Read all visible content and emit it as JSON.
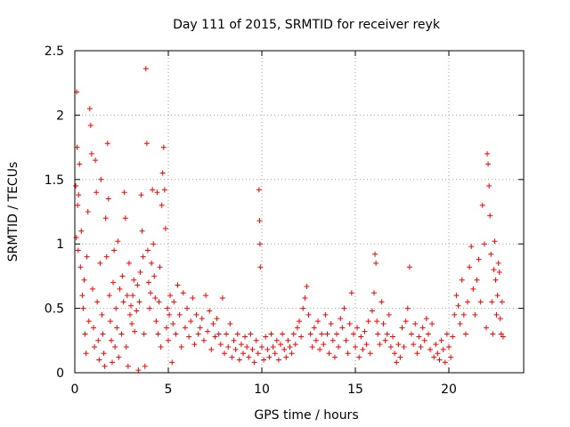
{
  "chart_data": {
    "type": "scatter",
    "title": "Day 111 of 2015, SRMTID for receiver reyk",
    "xlabel": "GPS time / hours",
    "ylabel": "SRMTID / TECUs",
    "xlim": [
      0,
      24
    ],
    "ylim": [
      0,
      2.5
    ],
    "xticks": [
      0,
      5,
      10,
      15,
      20
    ],
    "xtick_labels": [
      "0",
      "5",
      "10",
      "15",
      "20"
    ],
    "yticks": [
      0,
      0.5,
      1,
      1.5,
      2,
      2.5
    ],
    "ytick_labels": [
      "0",
      "0.5",
      "1",
      "1.5",
      "2",
      "2.5"
    ],
    "grid": true,
    "marker": "+",
    "color": "#ff0000",
    "series": [
      {
        "name": "SRMTID",
        "points": [
          [
            0.05,
            1.45
          ],
          [
            0.1,
            2.18
          ],
          [
            0.12,
            1.75
          ],
          [
            0.15,
            1.3
          ],
          [
            0.2,
            1.38
          ],
          [
            0.25,
            1.62
          ],
          [
            0.08,
            1.05
          ],
          [
            0.18,
            0.95
          ],
          [
            0.3,
            0.82
          ],
          [
            0.35,
            1.1
          ],
          [
            0.4,
            0.6
          ],
          [
            0.45,
            0.5
          ],
          [
            0.5,
            0.72
          ],
          [
            0.55,
            0.3
          ],
          [
            0.6,
            0.15
          ],
          [
            0.65,
            0.9
          ],
          [
            0.7,
            1.25
          ],
          [
            0.75,
            0.4
          ],
          [
            0.8,
            2.05
          ],
          [
            0.85,
            1.92
          ],
          [
            0.9,
            1.7
          ],
          [
            0.95,
            0.65
          ],
          [
            1.0,
            0.35
          ],
          [
            1.05,
            0.2
          ],
          [
            1.1,
            1.65
          ],
          [
            1.15,
            1.4
          ],
          [
            1.2,
            0.55
          ],
          [
            1.25,
            0.25
          ],
          [
            1.3,
            0.1
          ],
          [
            1.35,
            0.85
          ],
          [
            1.4,
            1.5
          ],
          [
            1.45,
            0.45
          ],
          [
            1.5,
            0.3
          ],
          [
            1.55,
            0.15
          ],
          [
            1.6,
            0.05
          ],
          [
            1.65,
            1.2
          ],
          [
            1.7,
            0.9
          ],
          [
            1.75,
            1.78
          ],
          [
            1.8,
            1.35
          ],
          [
            1.85,
            0.6
          ],
          [
            1.9,
            0.4
          ],
          [
            1.95,
            0.25
          ],
          [
            2.0,
            0.08
          ],
          [
            2.05,
            0.7
          ],
          [
            2.1,
            0.95
          ],
          [
            2.15,
            0.2
          ],
          [
            2.2,
            0.5
          ],
          [
            2.25,
            0.35
          ],
          [
            2.3,
            1.02
          ],
          [
            2.35,
            0.12
          ],
          [
            2.4,
            0.65
          ],
          [
            2.5,
            0.3
          ],
          [
            2.55,
            0.75
          ],
          [
            2.6,
            0.55
          ],
          [
            2.65,
            1.4
          ],
          [
            2.7,
            1.2
          ],
          [
            2.75,
            0.2
          ],
          [
            2.8,
            0.6
          ],
          [
            2.85,
            0.05
          ],
          [
            2.9,
            0.85
          ],
          [
            2.95,
            0.45
          ],
          [
            3.0,
            0.52
          ],
          [
            3.05,
            0.38
          ],
          [
            3.1,
            0.6
          ],
          [
            3.15,
            0.72
          ],
          [
            3.2,
            0.32
          ],
          [
            3.3,
            0.48
          ],
          [
            3.35,
            0.68
          ],
          [
            3.4,
            0.02
          ],
          [
            3.45,
            0.55
          ],
          [
            3.5,
            0.78
          ],
          [
            3.55,
            1.38
          ],
          [
            3.6,
            1.1
          ],
          [
            3.65,
            0.9
          ],
          [
            3.7,
            0.3
          ],
          [
            3.75,
            0.05
          ],
          [
            3.8,
            2.36
          ],
          [
            3.85,
            1.78
          ],
          [
            3.9,
            0.95
          ],
          [
            3.95,
            0.7
          ],
          [
            4.0,
            0.5
          ],
          [
            4.05,
            0.62
          ],
          [
            4.1,
            0.85
          ],
          [
            4.15,
            1.42
          ],
          [
            4.2,
            1.0
          ],
          [
            4.25,
            0.75
          ],
          [
            4.3,
            0.58
          ],
          [
            4.35,
            0.4
          ],
          [
            4.4,
            1.4
          ],
          [
            4.45,
            0.3
          ],
          [
            4.5,
            0.55
          ],
          [
            4.55,
            0.82
          ],
          [
            4.6,
            0.2
          ],
          [
            4.65,
            1.3
          ],
          [
            4.7,
            1.55
          ],
          [
            4.75,
            1.75
          ],
          [
            4.8,
            1.42
          ],
          [
            4.85,
            1.12
          ],
          [
            4.9,
            0.35
          ],
          [
            4.95,
            0.5
          ],
          [
            5.0,
            0.25
          ],
          [
            5.05,
            0.45
          ],
          [
            5.1,
            0.6
          ],
          [
            5.2,
            0.08
          ],
          [
            5.25,
            0.38
          ],
          [
            5.3,
            0.55
          ],
          [
            5.4,
            0.3
          ],
          [
            5.5,
            0.68
          ],
          [
            5.6,
            0.45
          ],
          [
            5.7,
            0.2
          ],
          [
            5.8,
            0.62
          ],
          [
            5.9,
            0.35
          ],
          [
            6.0,
            0.5
          ],
          [
            6.1,
            0.28
          ],
          [
            6.2,
            0.4
          ],
          [
            6.3,
            0.58
          ],
          [
            6.4,
            0.22
          ],
          [
            6.5,
            0.45
          ],
          [
            6.6,
            0.3
          ],
          [
            6.7,
            0.35
          ],
          [
            6.8,
            0.42
          ],
          [
            6.9,
            0.25
          ],
          [
            7.0,
            0.6
          ],
          [
            7.1,
            0.32
          ],
          [
            7.2,
            0.48
          ],
          [
            7.3,
            0.18
          ],
          [
            7.4,
            0.38
          ],
          [
            7.5,
            0.28
          ],
          [
            7.6,
            0.42
          ],
          [
            7.7,
            0.3
          ],
          [
            7.8,
            0.22
          ],
          [
            7.9,
            0.58
          ],
          [
            8.0,
            0.15
          ],
          [
            8.1,
            0.3
          ],
          [
            8.2,
            0.2
          ],
          [
            8.3,
            0.38
          ],
          [
            8.4,
            0.12
          ],
          [
            8.5,
            0.25
          ],
          [
            8.6,
            0.18
          ],
          [
            8.7,
            0.3
          ],
          [
            8.8,
            0.1
          ],
          [
            8.9,
            0.22
          ],
          [
            9.0,
            0.15
          ],
          [
            9.1,
            0.28
          ],
          [
            9.2,
            0.2
          ],
          [
            9.3,
            0.12
          ],
          [
            9.4,
            0.3
          ],
          [
            9.5,
            0.18
          ],
          [
            9.6,
            0.08
          ],
          [
            9.7,
            0.25
          ],
          [
            9.8,
            0.15
          ],
          [
            9.85,
            1.42
          ],
          [
            9.88,
            1.18
          ],
          [
            9.9,
            1.0
          ],
          [
            9.92,
            0.82
          ],
          [
            10.0,
            0.2
          ],
          [
            10.1,
            0.1
          ],
          [
            10.2,
            0.28
          ],
          [
            10.3,
            0.18
          ],
          [
            10.4,
            0.12
          ],
          [
            10.5,
            0.3
          ],
          [
            10.6,
            0.2
          ],
          [
            10.7,
            0.15
          ],
          [
            10.8,
            0.25
          ],
          [
            10.9,
            0.1
          ],
          [
            11.0,
            0.22
          ],
          [
            11.1,
            0.3
          ],
          [
            11.2,
            0.18
          ],
          [
            11.3,
            0.12
          ],
          [
            11.4,
            0.25
          ],
          [
            11.5,
            0.2
          ],
          [
            11.6,
            0.15
          ],
          [
            11.7,
            0.3
          ],
          [
            11.8,
            0.22
          ],
          [
            11.9,
            0.35
          ],
          [
            12.0,
            0.4
          ],
          [
            12.1,
            0.28
          ],
          [
            12.2,
            0.5
          ],
          [
            12.3,
            0.58
          ],
          [
            12.4,
            0.67
          ],
          [
            12.5,
            0.45
          ],
          [
            12.6,
            0.3
          ],
          [
            12.7,
            0.2
          ],
          [
            12.8,
            0.35
          ],
          [
            12.9,
            0.25
          ],
          [
            13.0,
            0.4
          ],
          [
            13.1,
            0.18
          ],
          [
            13.2,
            0.3
          ],
          [
            13.3,
            0.22
          ],
          [
            13.4,
            0.45
          ],
          [
            13.5,
            0.3
          ],
          [
            13.6,
            0.15
          ],
          [
            13.7,
            0.38
          ],
          [
            13.8,
            0.25
          ],
          [
            13.9,
            0.12
          ],
          [
            14.0,
            0.3
          ],
          [
            14.1,
            0.2
          ],
          [
            14.2,
            0.42
          ],
          [
            14.3,
            0.35
          ],
          [
            14.4,
            0.5
          ],
          [
            14.5,
            0.25
          ],
          [
            14.6,
            0.15
          ],
          [
            14.7,
            0.38
          ],
          [
            14.8,
            0.62
          ],
          [
            14.9,
            0.3
          ],
          [
            15.0,
            0.2
          ],
          [
            15.1,
            0.35
          ],
          [
            15.2,
            0.12
          ],
          [
            15.3,
            0.28
          ],
          [
            15.4,
            0.18
          ],
          [
            15.5,
            0.32
          ],
          [
            15.6,
            0.22
          ],
          [
            15.7,
            0.4
          ],
          [
            15.8,
            0.15
          ],
          [
            15.9,
            0.48
          ],
          [
            16.0,
            0.62
          ],
          [
            16.05,
            0.92
          ],
          [
            16.1,
            0.85
          ],
          [
            16.15,
            0.4
          ],
          [
            16.2,
            0.3
          ],
          [
            16.3,
            0.22
          ],
          [
            16.4,
            0.55
          ],
          [
            16.5,
            0.38
          ],
          [
            16.6,
            0.25
          ],
          [
            16.7,
            0.3
          ],
          [
            16.8,
            0.45
          ],
          [
            16.9,
            0.2
          ],
          [
            17.0,
            0.28
          ],
          [
            17.1,
            0.15
          ],
          [
            17.2,
            0.08
          ],
          [
            17.3,
            0.22
          ],
          [
            17.4,
            0.12
          ],
          [
            17.5,
            0.35
          ],
          [
            17.6,
            0.2
          ],
          [
            17.7,
            0.4
          ],
          [
            17.8,
            0.5
          ],
          [
            17.9,
            0.82
          ],
          [
            18.0,
            0.3
          ],
          [
            18.1,
            0.22
          ],
          [
            18.2,
            0.38
          ],
          [
            18.3,
            0.15
          ],
          [
            18.4,
            0.28
          ],
          [
            18.5,
            0.2
          ],
          [
            18.6,
            0.35
          ],
          [
            18.7,
            0.25
          ],
          [
            18.8,
            0.42
          ],
          [
            18.9,
            0.3
          ],
          [
            19.0,
            0.18
          ],
          [
            19.1,
            0.38
          ],
          [
            19.2,
            0.12
          ],
          [
            19.3,
            0.22
          ],
          [
            19.4,
            0.15
          ],
          [
            19.5,
            0.1
          ],
          [
            19.6,
            0.25
          ],
          [
            19.7,
            0.18
          ],
          [
            19.8,
            0.08
          ],
          [
            19.9,
            0.3
          ],
          [
            20.0,
            0.2
          ],
          [
            20.1,
            0.12
          ],
          [
            20.2,
            0.28
          ],
          [
            20.3,
            0.45
          ],
          [
            20.4,
            0.6
          ],
          [
            20.5,
            0.52
          ],
          [
            20.6,
            0.38
          ],
          [
            20.7,
            0.72
          ],
          [
            20.8,
            0.45
          ],
          [
            20.9,
            0.3
          ],
          [
            21.0,
            0.55
          ],
          [
            21.1,
            0.82
          ],
          [
            21.2,
            0.98
          ],
          [
            21.3,
            0.65
          ],
          [
            21.4,
            0.45
          ],
          [
            21.5,
            0.72
          ],
          [
            21.6,
            0.88
          ],
          [
            21.7,
            0.55
          ],
          [
            21.8,
            1.3
          ],
          [
            21.9,
            1.0
          ],
          [
            22.0,
            0.35
          ],
          [
            22.05,
            1.7
          ],
          [
            22.1,
            1.62
          ],
          [
            22.15,
            1.45
          ],
          [
            22.2,
            1.22
          ],
          [
            22.25,
            0.92
          ],
          [
            22.3,
            0.55
          ],
          [
            22.35,
            0.3
          ],
          [
            22.4,
            0.8
          ],
          [
            22.45,
            1.02
          ],
          [
            22.5,
            0.72
          ],
          [
            22.55,
            0.45
          ],
          [
            22.6,
            0.6
          ],
          [
            22.65,
            0.85
          ],
          [
            22.7,
            0.78
          ],
          [
            22.75,
            0.42
          ],
          [
            22.8,
            0.3
          ],
          [
            22.85,
            0.55
          ],
          [
            22.9,
            0.28
          ]
        ]
      }
    ]
  }
}
